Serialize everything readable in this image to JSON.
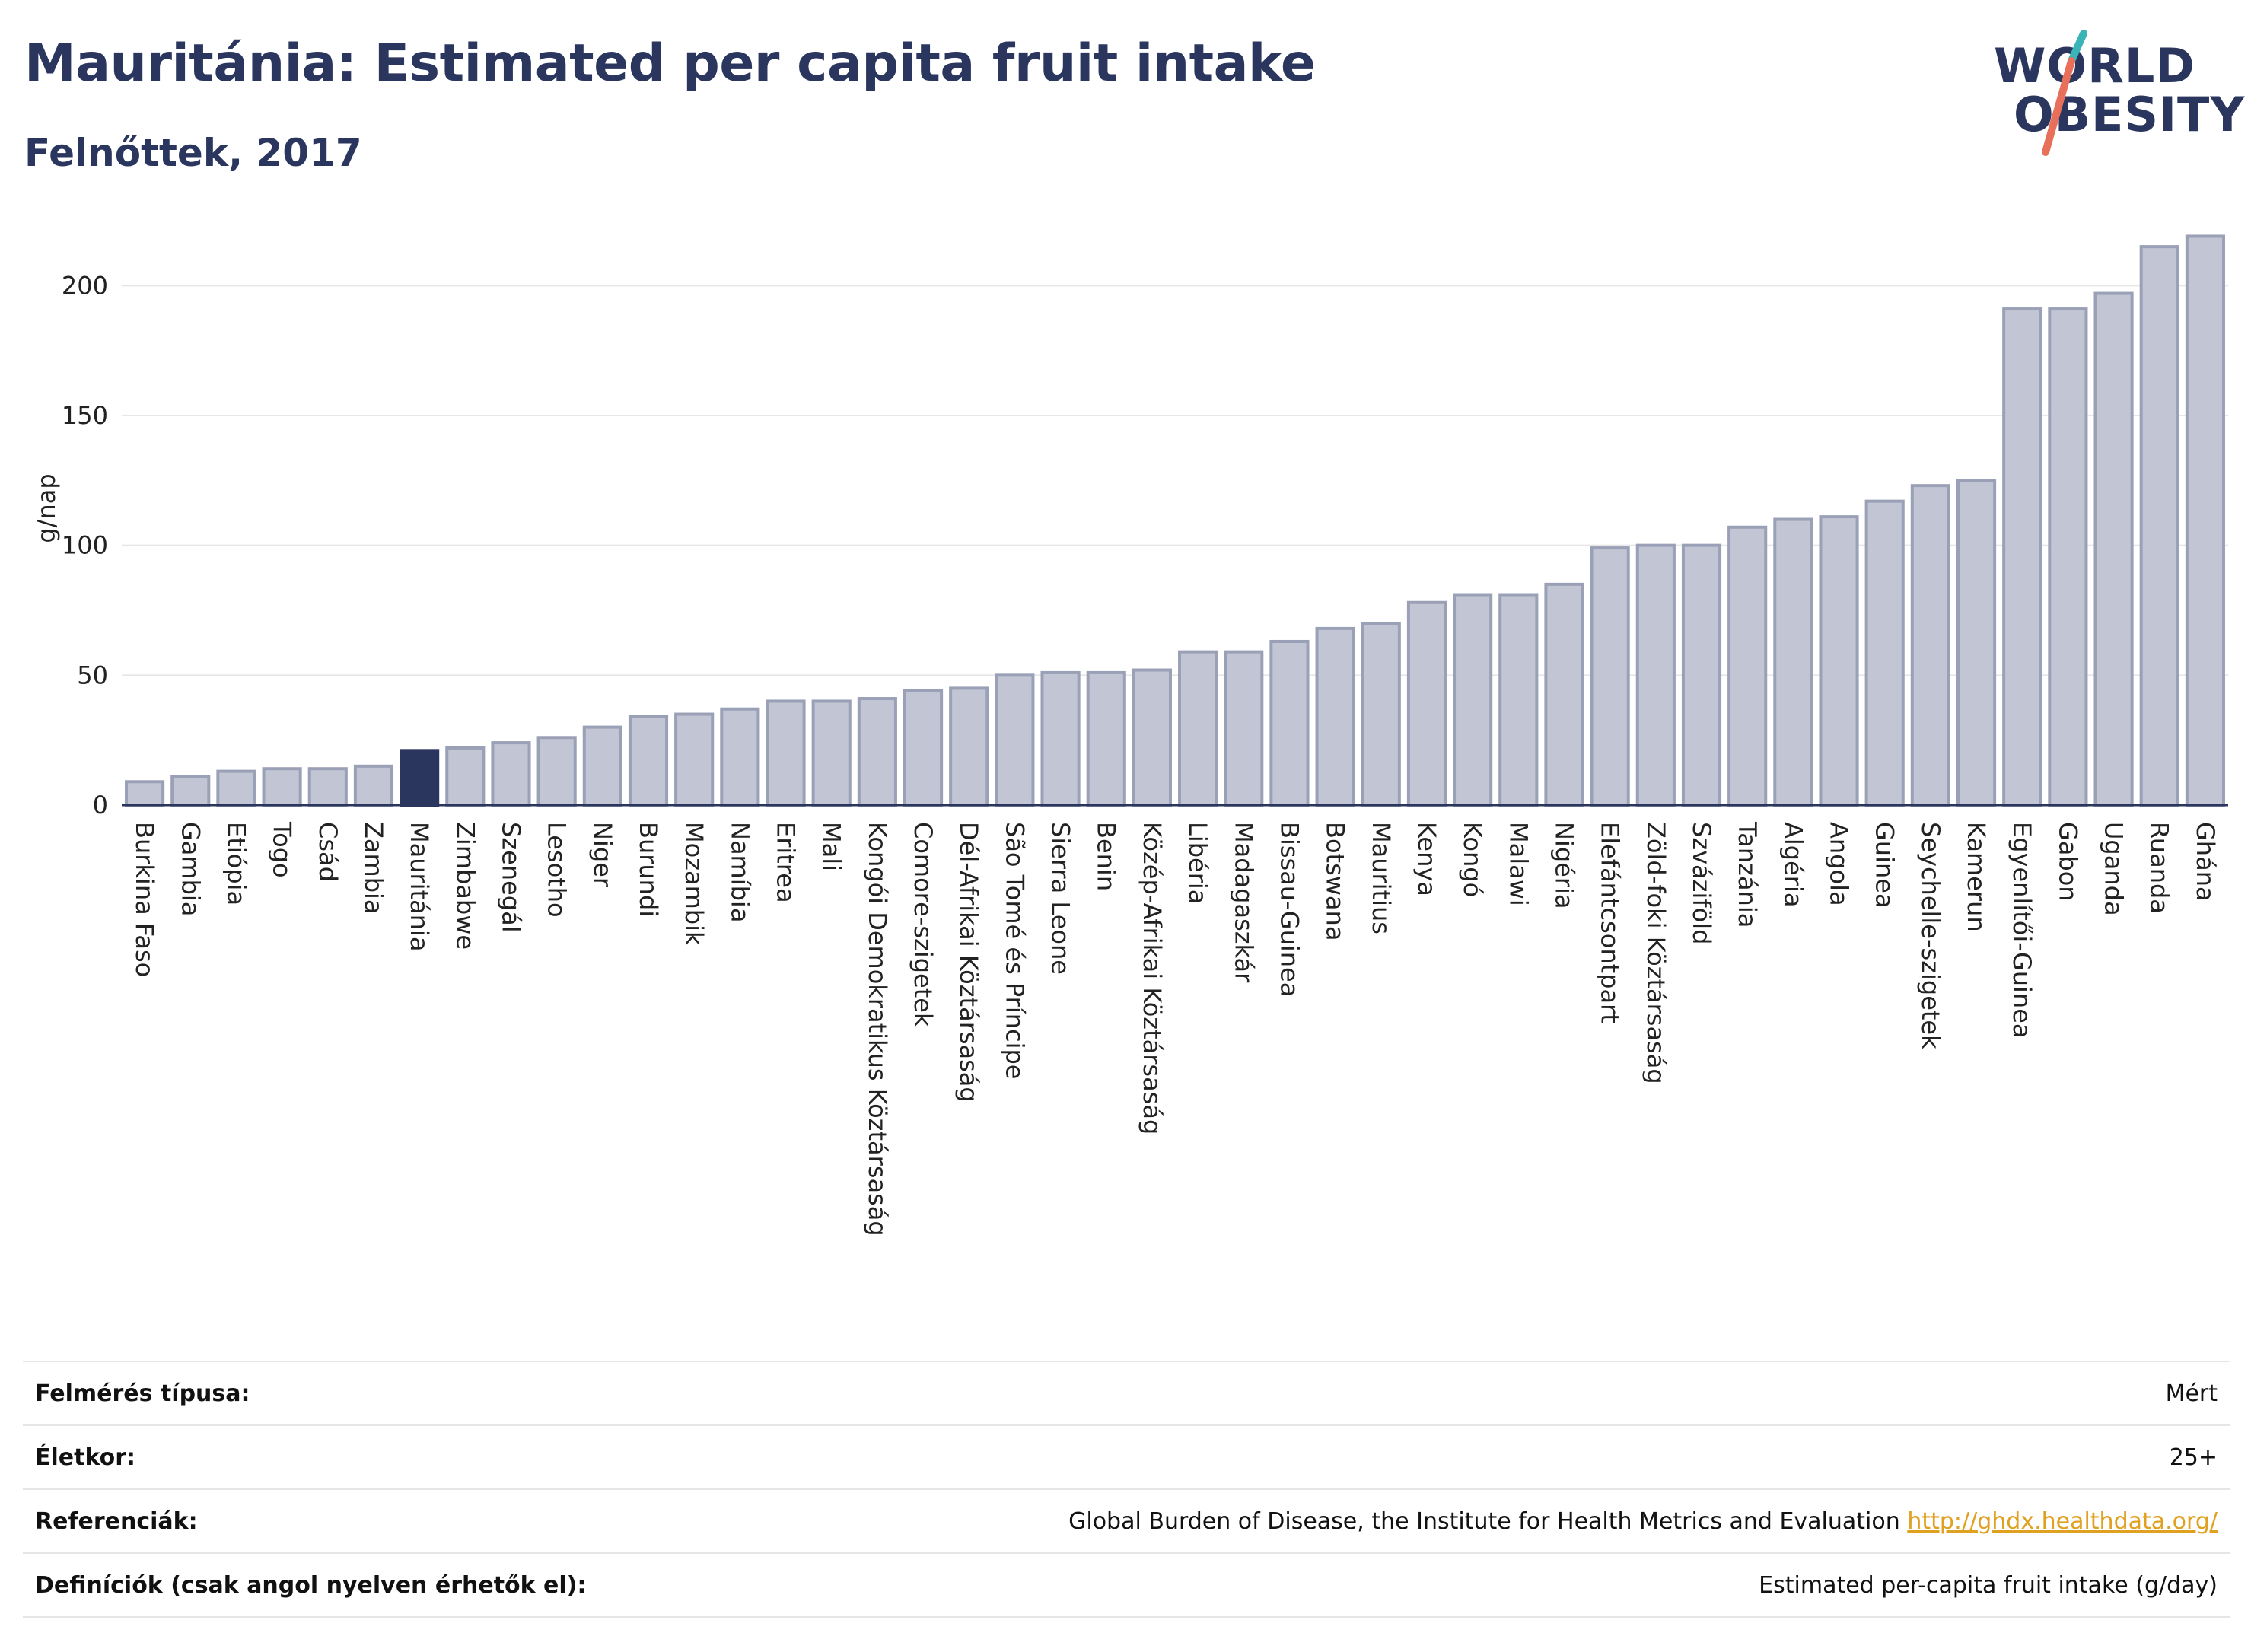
{
  "header": {
    "title": "Mauritánia: Estimated per capita fruit intake",
    "subtitle": "Felnőttek, 2017"
  },
  "logo": {
    "line1": "WORLD",
    "line2": "OBESITY",
    "colors": {
      "text": "#2b365f",
      "slash_teal": "#3bb4b8",
      "slash_coral": "#e8705a"
    }
  },
  "colors": {
    "bar": "#c2c6d4",
    "bar_stroke": "#9aa0b6",
    "highlight": "#2b365f",
    "grid": "#e6e6e6",
    "axis": "#2b365f"
  },
  "chart_data": {
    "type": "bar",
    "ylabel": "g/nap",
    "ylim": [
      0,
      225
    ],
    "yticks": [
      0,
      50,
      100,
      150,
      200
    ],
    "grid": true,
    "highlight": "Mauritánia",
    "categories": [
      "Burkina Faso",
      "Gambia",
      "Etiópia",
      "Togo",
      "Csád",
      "Zambia",
      "Mauritánia",
      "Zimbabwe",
      "Szenegál",
      "Lesotho",
      "Niger",
      "Burundi",
      "Mozambik",
      "Namíbia",
      "Eritrea",
      "Mali",
      "Kongói Demokratikus Köztársaság",
      "Comore-szigetek",
      "Dél-Afrikai Köztársaság",
      "São Tomé és Príncipe",
      "Sierra Leone",
      "Benin",
      "Közép-Afrikai Köztársaság",
      "Libéria",
      "Madagaszkár",
      "Bissau-Guinea",
      "Botswana",
      "Mauritius",
      "Kenya",
      "Kongó",
      "Malawi",
      "Nigéria",
      "Elefántcsontpart",
      "Zöld-foki Köztársaság",
      "Szváziföld",
      "Tanzánia",
      "Algéria",
      "Angola",
      "Guinea",
      "Seychelle-szigetek",
      "Kamerun",
      "Egyenlítői-Guinea",
      "Gabon",
      "Uganda",
      "Ruanda",
      "Ghána"
    ],
    "values": [
      9,
      11,
      13,
      14,
      14,
      15,
      21,
      22,
      24,
      26,
      30,
      34,
      35,
      37,
      40,
      40,
      41,
      44,
      45,
      50,
      51,
      51,
      52,
      59,
      59,
      63,
      68,
      70,
      78,
      81,
      81,
      85,
      99,
      100,
      100,
      107,
      110,
      111,
      117,
      123,
      125,
      191,
      191,
      197,
      215,
      219
    ]
  },
  "meta": [
    {
      "label": "Felmérés típusa:",
      "value": "Mért",
      "link": ""
    },
    {
      "label": "Életkor:",
      "value": "25+",
      "link": ""
    },
    {
      "label": "Referenciák:",
      "value": "Global Burden of Disease, the Institute for Health Metrics and Evaluation",
      "link": "http://ghdx.healthdata.org/"
    },
    {
      "label": "Definíciók (csak angol nyelven érhetők el):",
      "value": "Estimated per-capita fruit intake (g/day)",
      "link": ""
    }
  ]
}
